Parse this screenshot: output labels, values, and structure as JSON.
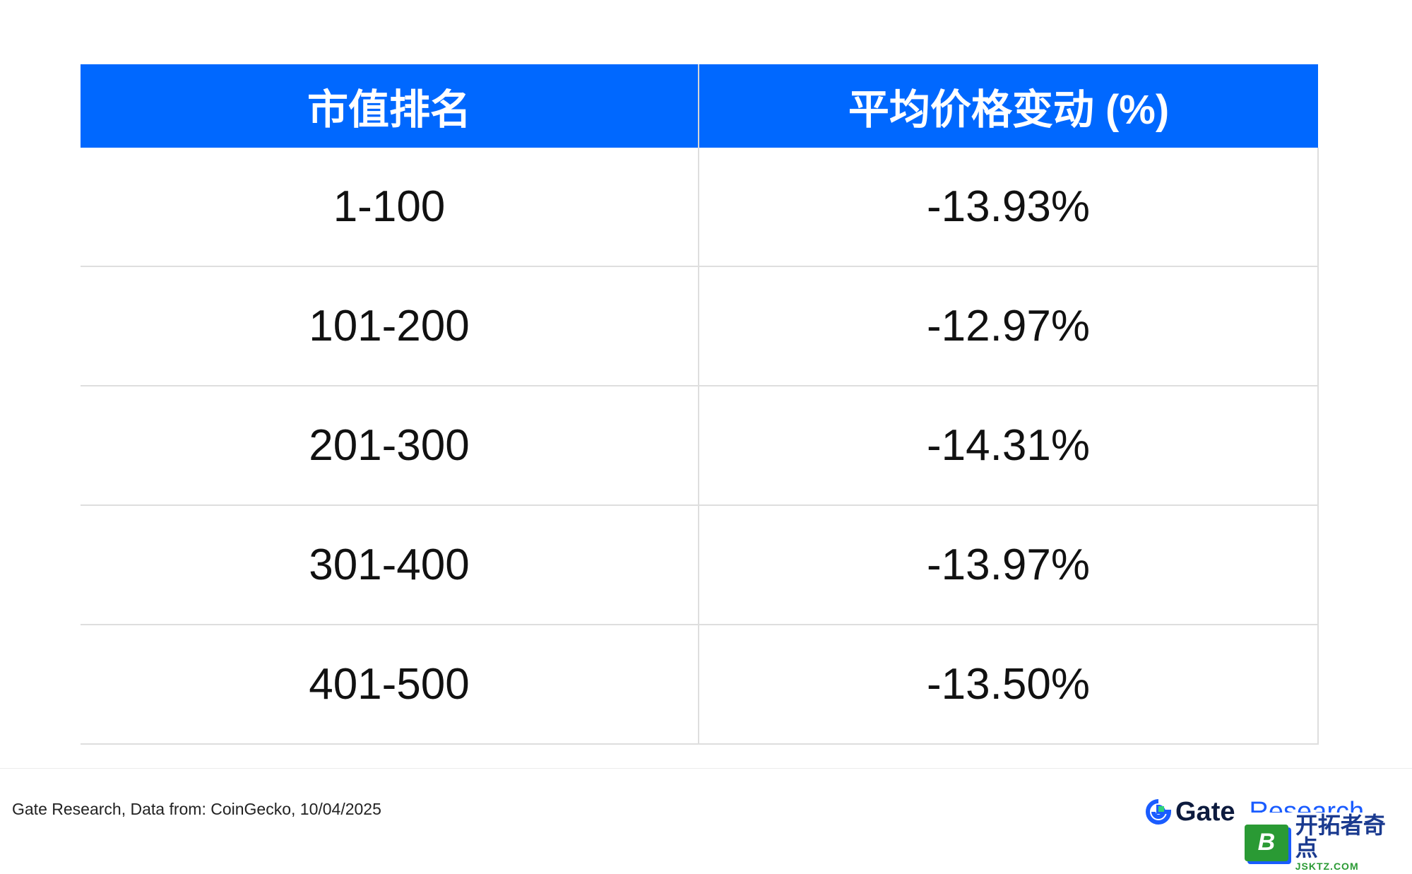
{
  "chart_data": {
    "type": "table",
    "columns": [
      "市值排名",
      "平均价格变动 (%)"
    ],
    "rows": [
      [
        "1-100",
        "-13.93%"
      ],
      [
        "101-200",
        "-12.97%"
      ],
      [
        "201-300",
        "-14.31%"
      ],
      [
        "301-400",
        "-13.97%"
      ],
      [
        "401-500",
        "-13.50%"
      ]
    ],
    "values": [
      -13.93,
      -12.97,
      -14.31,
      -13.97,
      -13.5
    ]
  },
  "footer": {
    "source": "Gate Research, Data from: CoinGecko, 10/04/2025"
  },
  "brand": {
    "gate": "Gate",
    "research": "Research"
  },
  "badge": {
    "letter": "B",
    "cn": "开拓者奇点",
    "en": "JSKTZ.COM"
  },
  "colors": {
    "header_bg": "#0068ff",
    "header_text": "#ffffff",
    "brand_blue": "#1a5cff"
  }
}
